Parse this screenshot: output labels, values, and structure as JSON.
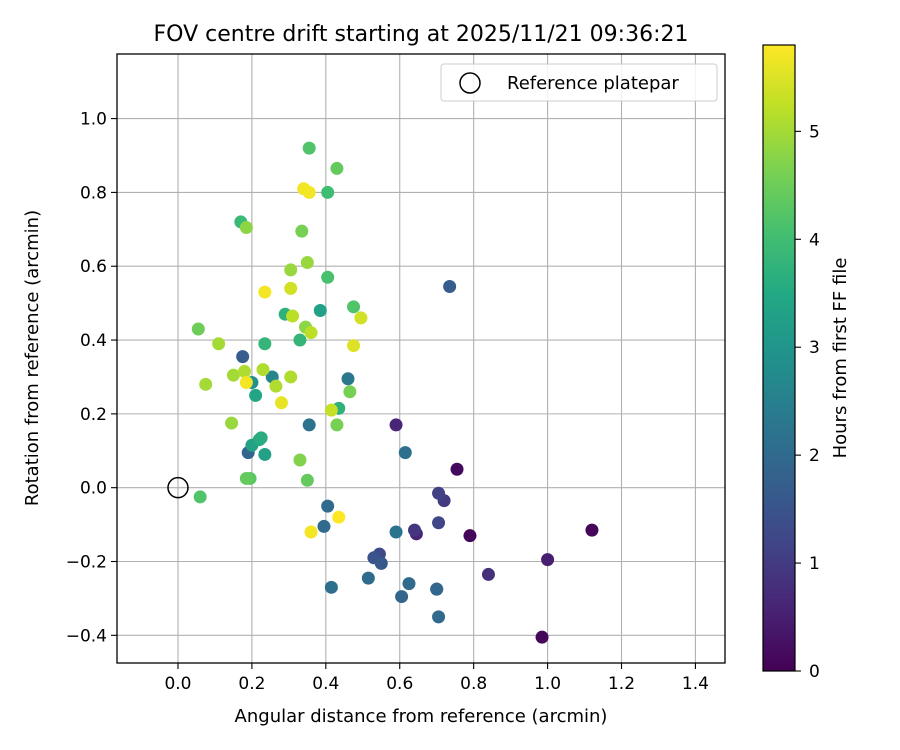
{
  "chart_data": {
    "type": "scatter",
    "title": "FOV centre drift starting at 2025/11/21 09:36:21",
    "xlabel": "Angular distance from reference (arcmin)",
    "ylabel": "Rotation from reference (arcmin)",
    "xlim": [
      -0.165,
      1.48
    ],
    "ylim": [
      -0.475,
      1.175
    ],
    "xticks": [
      0.0,
      0.2,
      0.4,
      0.6,
      0.8,
      1.0,
      1.2,
      1.4
    ],
    "xtick_labels": [
      "0.0",
      "0.2",
      "0.4",
      "0.6",
      "0.8",
      "1.0",
      "1.2",
      "1.4"
    ],
    "yticks": [
      -0.4,
      -0.2,
      0.0,
      0.2,
      0.4,
      0.6,
      0.8,
      1.0
    ],
    "ytick_labels": [
      "−0.4",
      "−0.2",
      "0.0",
      "0.2",
      "0.4",
      "0.6",
      "0.8",
      "1.0"
    ],
    "grid": true,
    "legend": {
      "location": "top-right",
      "label": "Reference platepar"
    },
    "reference_point": {
      "x": 0.0,
      "y": 0.0
    },
    "colorbar": {
      "label": "Hours from first FF file",
      "colormap": "viridis",
      "range": [
        0,
        5.8
      ],
      "ticks": [
        0,
        1,
        2,
        3,
        4,
        5
      ],
      "tick_labels": [
        "0",
        "1",
        "2",
        "3",
        "4",
        "5"
      ]
    },
    "points": [
      {
        "x": 0.985,
        "y": -0.405,
        "h": 0.1
      },
      {
        "x": 1.12,
        "y": -0.115,
        "h": 0.1
      },
      {
        "x": 0.79,
        "y": -0.13,
        "h": 0.1
      },
      {
        "x": 0.755,
        "y": 0.05,
        "h": 0.15
      },
      {
        "x": 1.0,
        "y": -0.195,
        "h": 0.5
      },
      {
        "x": 0.84,
        "y": -0.235,
        "h": 0.8
      },
      {
        "x": 0.59,
        "y": 0.17,
        "h": 0.6
      },
      {
        "x": 0.645,
        "y": -0.125,
        "h": 0.6
      },
      {
        "x": 0.64,
        "y": -0.115,
        "h": 0.9
      },
      {
        "x": 0.72,
        "y": -0.035,
        "h": 1.0
      },
      {
        "x": 0.705,
        "y": -0.015,
        "h": 1.1
      },
      {
        "x": 0.705,
        "y": -0.095,
        "h": 1.2
      },
      {
        "x": 0.545,
        "y": -0.18,
        "h": 1.3
      },
      {
        "x": 0.53,
        "y": -0.19,
        "h": 1.5
      },
      {
        "x": 0.55,
        "y": -0.205,
        "h": 1.6
      },
      {
        "x": 0.735,
        "y": 0.545,
        "h": 1.7
      },
      {
        "x": 0.175,
        "y": 0.355,
        "h": 1.7
      },
      {
        "x": 0.7,
        "y": -0.275,
        "h": 1.8
      },
      {
        "x": 0.7,
        "y": -0.275,
        "h": 1.9
      },
      {
        "x": 0.705,
        "y": -0.35,
        "h": 2.0
      },
      {
        "x": 0.605,
        "y": -0.295,
        "h": 1.9
      },
      {
        "x": 0.625,
        "y": -0.26,
        "h": 2.0
      },
      {
        "x": 0.515,
        "y": -0.245,
        "h": 2.0
      },
      {
        "x": 0.415,
        "y": -0.27,
        "h": 2.1
      },
      {
        "x": 0.395,
        "y": -0.105,
        "h": 2.0
      },
      {
        "x": 0.405,
        "y": -0.05,
        "h": 2.0
      },
      {
        "x": 0.59,
        "y": -0.12,
        "h": 2.2
      },
      {
        "x": 0.615,
        "y": 0.095,
        "h": 2.1
      },
      {
        "x": 0.19,
        "y": 0.095,
        "h": 1.9
      },
      {
        "x": 0.355,
        "y": 0.17,
        "h": 2.2
      },
      {
        "x": 0.46,
        "y": 0.295,
        "h": 2.3
      },
      {
        "x": 0.255,
        "y": 0.3,
        "h": 2.6
      },
      {
        "x": 0.2,
        "y": 0.285,
        "h": 2.9
      },
      {
        "x": 0.2,
        "y": 0.115,
        "h": 3.3
      },
      {
        "x": 0.235,
        "y": 0.09,
        "h": 3.3
      },
      {
        "x": 0.21,
        "y": 0.25,
        "h": 3.4
      },
      {
        "x": 0.22,
        "y": 0.13,
        "h": 3.5
      },
      {
        "x": 0.225,
        "y": 0.135,
        "h": 3.6
      },
      {
        "x": 0.385,
        "y": 0.48,
        "h": 3.3
      },
      {
        "x": 0.29,
        "y": 0.47,
        "h": 3.7
      },
      {
        "x": 0.435,
        "y": 0.215,
        "h": 3.7
      },
      {
        "x": 0.33,
        "y": 0.4,
        "h": 3.8
      },
      {
        "x": 0.235,
        "y": 0.39,
        "h": 3.8
      },
      {
        "x": 0.17,
        "y": 0.72,
        "h": 3.9
      },
      {
        "x": 0.405,
        "y": 0.8,
        "h": 4.0
      },
      {
        "x": 0.405,
        "y": 0.57,
        "h": 4.1
      },
      {
        "x": 0.355,
        "y": 0.92,
        "h": 4.2
      },
      {
        "x": 0.43,
        "y": 0.865,
        "h": 4.4
      },
      {
        "x": 0.475,
        "y": 0.49,
        "h": 4.2
      },
      {
        "x": 0.06,
        "y": -0.025,
        "h": 4.2
      },
      {
        "x": 0.185,
        "y": 0.025,
        "h": 4.4
      },
      {
        "x": 0.195,
        "y": 0.025,
        "h": 4.3
      },
      {
        "x": 0.35,
        "y": 0.02,
        "h": 4.4
      },
      {
        "x": 0.055,
        "y": 0.43,
        "h": 4.5
      },
      {
        "x": 0.335,
        "y": 0.695,
        "h": 4.6
      },
      {
        "x": 0.43,
        "y": 0.17,
        "h": 4.6
      },
      {
        "x": 0.465,
        "y": 0.26,
        "h": 4.6
      },
      {
        "x": 0.33,
        "y": 0.075,
        "h": 4.7
      },
      {
        "x": 0.185,
        "y": 0.705,
        "h": 4.8
      },
      {
        "x": 0.305,
        "y": 0.59,
        "h": 4.9
      },
      {
        "x": 0.345,
        "y": 0.435,
        "h": 4.8
      },
      {
        "x": 0.35,
        "y": 0.61,
        "h": 4.9
      },
      {
        "x": 0.145,
        "y": 0.175,
        "h": 4.9
      },
      {
        "x": 0.15,
        "y": 0.305,
        "h": 5.0
      },
      {
        "x": 0.075,
        "y": 0.28,
        "h": 5.0
      },
      {
        "x": 0.11,
        "y": 0.39,
        "h": 5.0
      },
      {
        "x": 0.18,
        "y": 0.315,
        "h": 5.1
      },
      {
        "x": 0.23,
        "y": 0.32,
        "h": 5.1
      },
      {
        "x": 0.265,
        "y": 0.275,
        "h": 5.1
      },
      {
        "x": 0.305,
        "y": 0.3,
        "h": 5.1
      },
      {
        "x": 0.31,
        "y": 0.465,
        "h": 5.2
      },
      {
        "x": 0.36,
        "y": 0.42,
        "h": 5.2
      },
      {
        "x": 0.415,
        "y": 0.21,
        "h": 5.3
      },
      {
        "x": 0.305,
        "y": 0.54,
        "h": 5.4
      },
      {
        "x": 0.495,
        "y": 0.46,
        "h": 5.4
      },
      {
        "x": 0.475,
        "y": 0.385,
        "h": 5.5
      },
      {
        "x": 0.28,
        "y": 0.23,
        "h": 5.6
      },
      {
        "x": 0.185,
        "y": 0.285,
        "h": 5.7
      },
      {
        "x": 0.235,
        "y": 0.53,
        "h": 5.7
      },
      {
        "x": 0.34,
        "y": 0.81,
        "h": 5.7
      },
      {
        "x": 0.355,
        "y": 0.8,
        "h": 5.7
      },
      {
        "x": 0.36,
        "y": -0.12,
        "h": 5.7
      },
      {
        "x": 0.435,
        "y": -0.08,
        "h": 5.8
      }
    ]
  }
}
